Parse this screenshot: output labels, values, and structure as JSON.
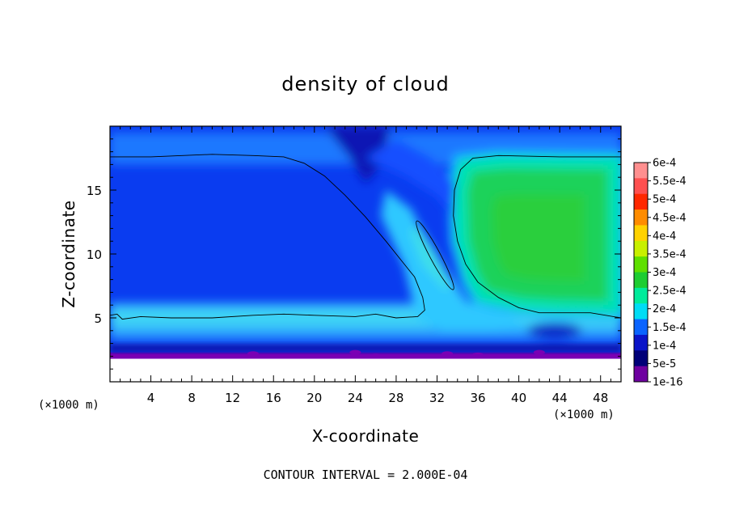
{
  "chart_data": {
    "type": "heatmap",
    "title": "density of cloud",
    "xlabel": "X-coordinate",
    "ylabel": "Z-coordinate",
    "x_unit": "(×1000 m)",
    "y_unit": "(×1000 m)",
    "xlim": [
      0,
      50
    ],
    "ylim": [
      0,
      20
    ],
    "x_ticks": [
      4,
      8,
      12,
      16,
      20,
      24,
      28,
      32,
      36,
      40,
      44,
      48
    ],
    "y_ticks": [
      5,
      10,
      15
    ],
    "footer": "CONTOUR INTERVAL = 2.000E-04",
    "colorbar": {
      "labels": [
        "6e-4",
        "5.5e-4",
        "5e-4",
        "4.5e-4",
        "4e-4",
        "3.5e-4",
        "3e-4",
        "2.5e-4",
        "2e-4",
        "1.5e-4",
        "1e-4",
        "5e-5",
        "1e-16"
      ],
      "colors": [
        "#ff8f8f",
        "#ff5050",
        "#ff2800",
        "#ff8c00",
        "#ffd200",
        "#c8f000",
        "#5fe000",
        "#1ecd32",
        "#00eb9b",
        "#00dcf5",
        "#0a64ff",
        "#0a14c8",
        "#000078",
        "#6e00a0"
      ]
    },
    "field": {
      "levels_note": "",
      "base_value": 0.00026
    }
  }
}
